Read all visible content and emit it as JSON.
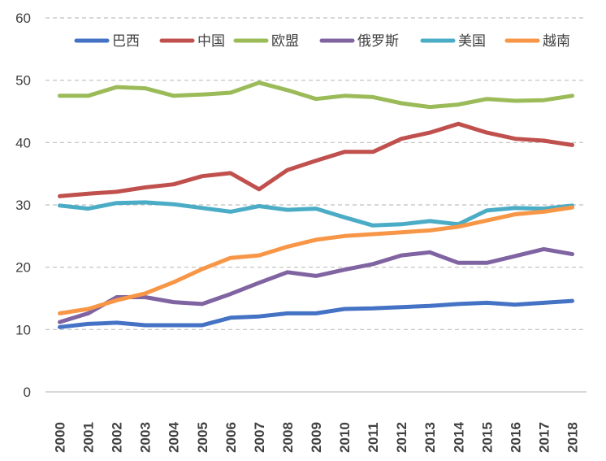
{
  "chart_data": {
    "type": "line",
    "title": "",
    "xlabel": "",
    "ylabel": "",
    "ylim": [
      0,
      60
    ],
    "yticks": [
      0,
      10,
      20,
      30,
      40,
      50,
      60
    ],
    "grid": true,
    "legend_position": "top",
    "categories": [
      "2000",
      "2001",
      "2002",
      "2003",
      "2004",
      "2005",
      "2006",
      "2007",
      "2008",
      "2009",
      "2010",
      "2011",
      "2012",
      "2013",
      "2014",
      "2015",
      "2016",
      "2017",
      "2018"
    ],
    "series": [
      {
        "name": "巴西",
        "color": "#4472c4",
        "values": [
          10.4,
          10.9,
          11.1,
          10.7,
          10.7,
          10.7,
          11.9,
          12.1,
          12.6,
          12.6,
          13.3,
          13.4,
          13.6,
          13.8,
          14.1,
          14.3,
          14.0,
          14.3,
          14.6
        ]
      },
      {
        "name": "中国",
        "color": "#c0504d",
        "values": [
          31.4,
          31.8,
          32.1,
          32.8,
          33.3,
          34.6,
          35.1,
          32.5,
          35.6,
          37.1,
          38.5,
          38.5,
          40.6,
          41.6,
          43.0,
          41.6,
          40.6,
          40.3,
          39.6
        ]
      },
      {
        "name": "欧盟",
        "color": "#9bbb59",
        "values": [
          47.5,
          47.5,
          48.9,
          48.7,
          47.5,
          47.7,
          48.0,
          49.6,
          48.4,
          47.0,
          47.5,
          47.3,
          46.3,
          45.7,
          46.1,
          47.0,
          46.7,
          46.8,
          47.5
        ]
      },
      {
        "name": "俄罗斯",
        "color": "#8064a2",
        "values": [
          11.2,
          12.6,
          15.2,
          15.2,
          14.4,
          14.1,
          15.7,
          17.5,
          19.2,
          18.6,
          19.6,
          20.5,
          21.9,
          22.4,
          20.7,
          20.7,
          21.8,
          22.9,
          22.1
        ]
      },
      {
        "name": "美国",
        "color": "#4bacc6",
        "values": [
          29.9,
          29.4,
          30.3,
          30.4,
          30.1,
          29.5,
          28.9,
          29.8,
          29.2,
          29.4,
          28.0,
          26.7,
          26.9,
          27.4,
          26.9,
          29.1,
          29.5,
          29.4,
          29.9
        ]
      },
      {
        "name": "越南",
        "color": "#f79646",
        "values": [
          12.6,
          13.3,
          14.7,
          15.8,
          17.6,
          19.7,
          21.5,
          21.9,
          23.3,
          24.4,
          25.0,
          25.3,
          25.6,
          25.9,
          26.5,
          27.5,
          28.5,
          28.9,
          29.6
        ]
      }
    ]
  }
}
